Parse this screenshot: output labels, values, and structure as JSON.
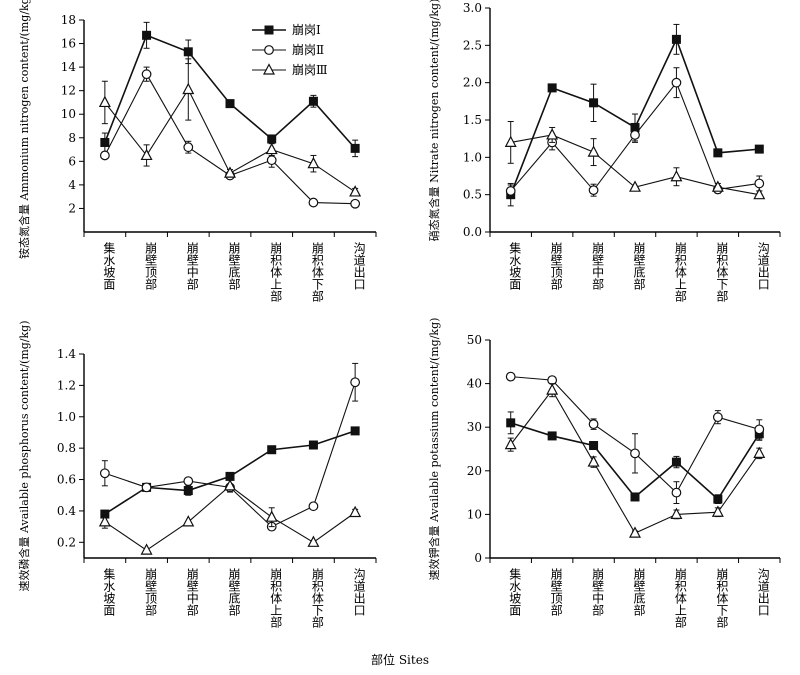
{
  "figure": {
    "xlabel": "部位  Sites"
  },
  "chart_data": [
    {
      "type": "line",
      "ylabel": "铵态氮含量 Ammonium nitrogen content/(mg/kg)",
      "ylim": [
        0,
        18
      ],
      "yticks": [
        2,
        4,
        6,
        8,
        10,
        12,
        14,
        16,
        18
      ],
      "categories": [
        "集水坡面",
        "崩壁顶部",
        "崩壁中部",
        "崩壁底部",
        "崩积体上部",
        "崩积体下部",
        "沟道出口"
      ],
      "legend": "top-center",
      "series": [
        {
          "name": "崩岗Ⅰ",
          "marker": "square",
          "values": [
            7.6,
            16.7,
            15.3,
            10.9,
            7.9,
            11.1,
            7.1
          ],
          "err": [
            0.8,
            1.1,
            1.0,
            0.3,
            0.3,
            0.5,
            0.7
          ]
        },
        {
          "name": "崩岗Ⅱ",
          "marker": "circle",
          "values": [
            6.5,
            13.4,
            7.2,
            4.8,
            6.1,
            2.5,
            2.4
          ],
          "err": [
            0.2,
            0.6,
            0.5,
            0.3,
            0.6,
            0.2,
            0.2
          ]
        },
        {
          "name": "崩岗Ⅲ",
          "marker": "triangle",
          "values": [
            11.0,
            6.5,
            12.1,
            5.0,
            7.0,
            5.8,
            3.4
          ],
          "err": [
            1.8,
            0.9,
            2.6,
            0.3,
            0.5,
            0.7,
            0.3
          ]
        }
      ]
    },
    {
      "type": "line",
      "ylabel": "硝态氮含量 Nitrate nitrogen content/(mg/kg)",
      "ylim": [
        0,
        3.0
      ],
      "yticks": [
        0,
        0.5,
        1.0,
        1.5,
        2.0,
        2.5,
        3.0
      ],
      "categories": [
        "集水坡面",
        "崩壁顶部",
        "崩壁中部",
        "崩壁底部",
        "崩积体上部",
        "崩积体下部",
        "沟道出口"
      ],
      "series": [
        {
          "name": "崩岗Ⅰ",
          "marker": "square",
          "values": [
            0.5,
            1.93,
            1.73,
            1.4,
            2.58,
            1.06,
            1.11
          ],
          "err": [
            0.15,
            0,
            0.25,
            0.18,
            0.2,
            0,
            0
          ]
        },
        {
          "name": "崩岗Ⅱ",
          "marker": "circle",
          "values": [
            0.55,
            1.2,
            0.56,
            1.3,
            2.0,
            0.57,
            0.65
          ],
          "err": [
            0.08,
            0.1,
            0.08,
            0.1,
            0.2,
            0.05,
            0.1
          ]
        },
        {
          "name": "崩岗Ⅲ",
          "marker": "triangle",
          "values": [
            1.2,
            1.3,
            1.07,
            0.6,
            0.74,
            0.6,
            0.5
          ],
          "err": [
            0.28,
            0.1,
            0.18,
            0,
            0.12,
            0.05,
            0.05
          ]
        }
      ]
    },
    {
      "type": "line",
      "ylabel": "速效磷含量 Available phosphorus content/(mg/kg)",
      "ylim": [
        0.1,
        1.4
      ],
      "yticks": [
        0.2,
        0.4,
        0.6,
        0.8,
        1.0,
        1.2,
        1.4
      ],
      "categories": [
        "集水坡面",
        "崩壁顶部",
        "崩壁中部",
        "崩壁底部",
        "崩积体上部",
        "崩积体下部",
        "沟道出口"
      ],
      "series": [
        {
          "name": "崩岗Ⅰ",
          "marker": "square",
          "values": [
            0.38,
            0.55,
            0.53,
            0.62,
            0.79,
            0.82,
            0.91
          ],
          "err": [
            0,
            0,
            0.03,
            0,
            0,
            0,
            0
          ]
        },
        {
          "name": "崩岗Ⅱ",
          "marker": "circle",
          "values": [
            0.64,
            0.55,
            0.59,
            0.55,
            0.3,
            0.43,
            1.22
          ],
          "err": [
            0.08,
            0,
            0.02,
            0.02,
            0.02,
            0,
            0.12
          ]
        },
        {
          "name": "崩岗Ⅲ",
          "marker": "triangle",
          "values": [
            0.33,
            0.15,
            0.33,
            0.56,
            0.36,
            0.2,
            0.39
          ],
          "err": [
            0.04,
            0,
            0,
            0.04,
            0.06,
            0,
            0.02
          ]
        }
      ]
    },
    {
      "type": "line",
      "ylabel": "速效钾含量 Available potassium content/(mg/kg)",
      "ylim": [
        0,
        50
      ],
      "yticks": [
        0,
        10,
        20,
        30,
        40,
        50
      ],
      "categories": [
        "集水坡面",
        "崩壁顶部",
        "崩壁中部",
        "崩壁底部",
        "崩积体上部",
        "崩积体下部",
        "沟道出口"
      ],
      "series": [
        {
          "name": "崩岗Ⅰ",
          "marker": "square",
          "values": [
            31.0,
            28.0,
            25.8,
            14.0,
            22.0,
            13.5,
            28.5
          ],
          "err": [
            2.5,
            0.8,
            0.5,
            0.5,
            1.3,
            1.0,
            1.5
          ]
        },
        {
          "name": "崩岗Ⅱ",
          "marker": "circle",
          "values": [
            41.6,
            40.8,
            30.7,
            24.0,
            15.0,
            32.3,
            29.5
          ],
          "err": [
            0.5,
            0.5,
            1.2,
            4.5,
            2.5,
            1.5,
            2.2
          ]
        },
        {
          "name": "崩岗Ⅲ",
          "marker": "triangle",
          "values": [
            26.0,
            38.5,
            22.0,
            5.7,
            10.0,
            10.5,
            24.0
          ],
          "err": [
            1.5,
            1.5,
            1.2,
            0.5,
            1.0,
            1.0,
            1.2
          ]
        }
      ]
    }
  ]
}
